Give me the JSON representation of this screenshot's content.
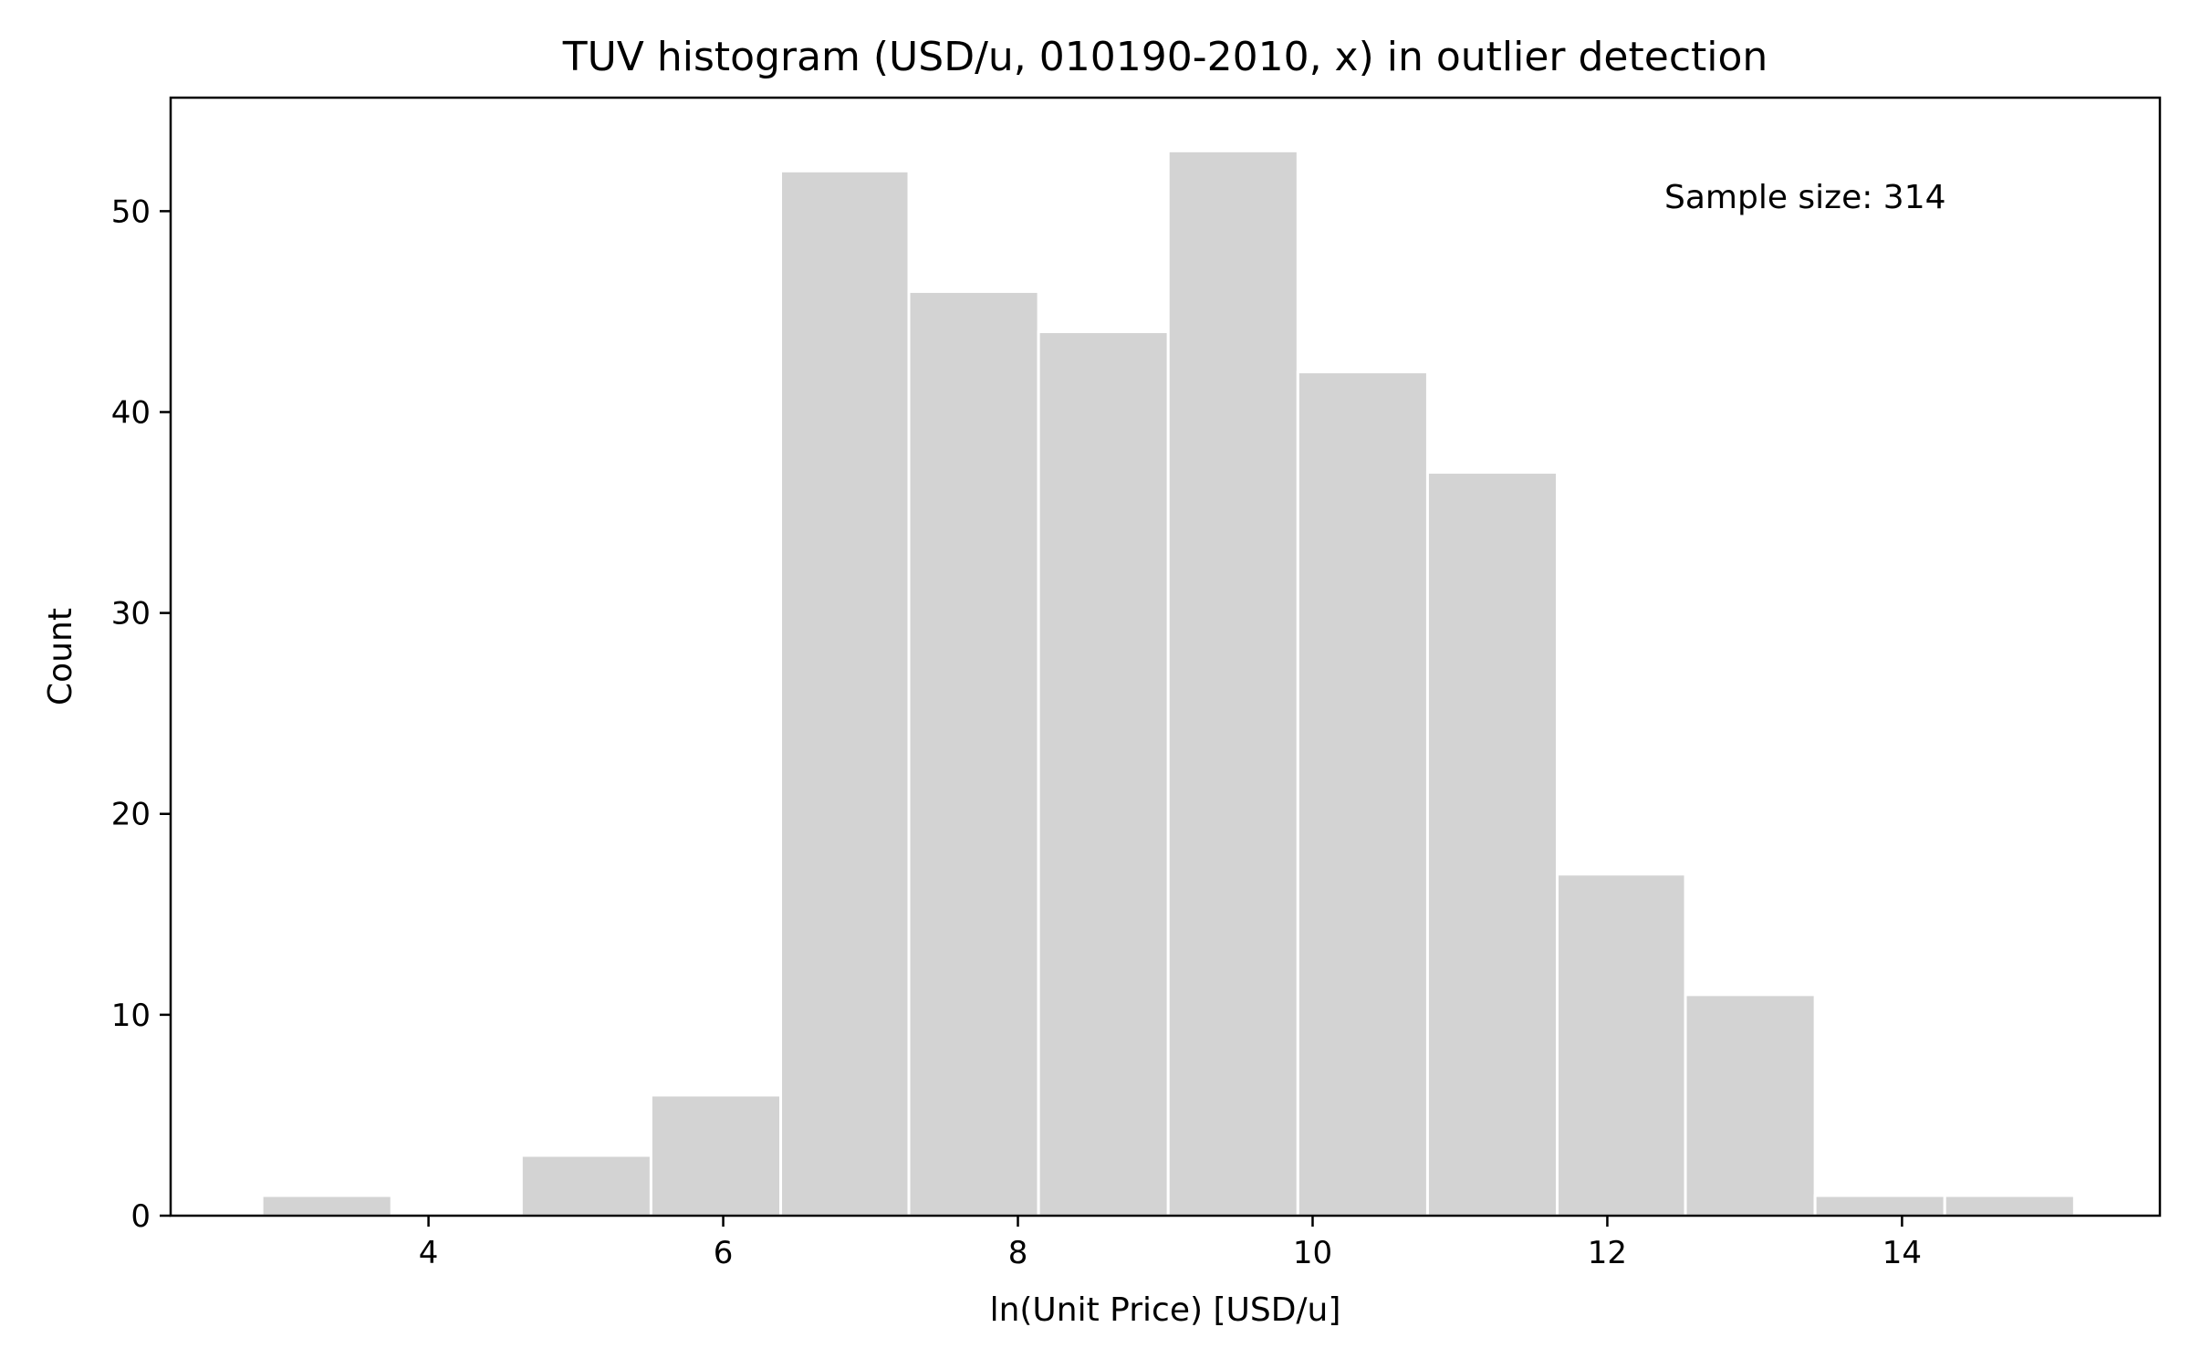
{
  "chart_data": {
    "type": "bar",
    "title": "TUV histogram (USD/u, 010190-2010, x) in outlier detection",
    "xlabel": "ln(Unit Price) [USD/u]",
    "ylabel": "Count",
    "annotation": "Sample size: 314",
    "xlim": [
      2.25,
      15.75
    ],
    "ylim": [
      0,
      55.65
    ],
    "x_ticks": [
      4,
      6,
      8,
      10,
      12,
      14
    ],
    "y_ticks": [
      0,
      10,
      20,
      30,
      40,
      50
    ],
    "bin_edges": [
      2.87,
      3.75,
      4.63,
      5.51,
      6.39,
      7.26,
      8.14,
      9.02,
      9.9,
      10.78,
      11.66,
      12.53,
      13.41,
      14.29,
      15.17
    ],
    "counts": [
      1,
      0,
      3,
      6,
      52,
      46,
      44,
      53,
      42,
      37,
      17,
      11,
      1,
      1
    ],
    "bar_color": "#d3d3d3",
    "edge_color": "#ffffff",
    "grid": false
  }
}
